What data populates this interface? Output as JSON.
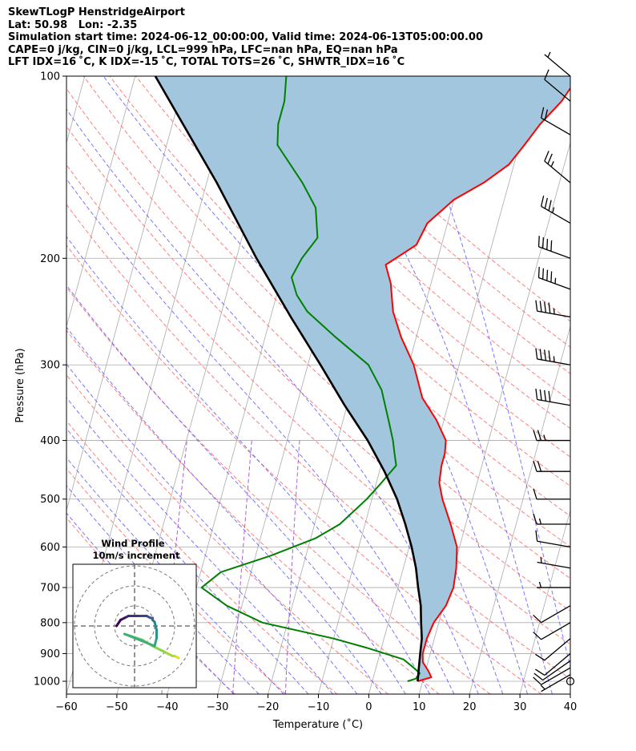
{
  "title": {
    "line1": "SkewTLogP HenstridgeAirport",
    "line2": "Lat: 50.98   Lon: -2.35",
    "line3": "Simulation start time: 2024-06-12_00:00:00, Valid time: 2024-06-13T05:00:00.00",
    "line4": "CAPE=0 j/kg, CIN=0 j/kg, LCL=999 hPa, LFC=nan hPa, EQ=nan hPa",
    "line5": "LFT IDX=16 ˚C, K IDX=-15 ˚C, TOTAL TOTS=26 ˚C, SHWTR_IDX=16 ˚C"
  },
  "chart_data": {
    "type": "line",
    "subtype": "skew-T log-P diagram",
    "xlabel": "Temperature (˚C)",
    "ylabel": "Pressure (hPa)",
    "xlim": [
      -60,
      40
    ],
    "ylim": [
      1050,
      100
    ],
    "y_scale": "log",
    "grid": true,
    "x_ticks": [
      -60,
      -50,
      -40,
      -30,
      -20,
      -10,
      0,
      10,
      20,
      30,
      40
    ],
    "x_tick_labels": [
      "−60",
      "−50",
      "−40",
      "−30",
      "−20",
      "−10",
      "0",
      "10",
      "20",
      "30",
      "40"
    ],
    "y_ticks": [
      1000,
      900,
      800,
      700,
      600,
      500,
      400,
      300,
      200,
      100
    ],
    "y_tick_labels": [
      "1000",
      "900",
      "800",
      "700",
      "600",
      "500",
      "400",
      "300",
      "200",
      "100"
    ],
    "colors": {
      "temperature": "#ff0000",
      "dewpoint": "#008000",
      "parcel": "#000000",
      "shade": "#a3c6df",
      "dry_adiabat": "#ff6666",
      "moist_adiabat": "#5555ff",
      "mixing_ratio": "#9944cc",
      "isotherm": "#aaaaaa"
    },
    "series": [
      {
        "key": "temperature",
        "pressure": [
          1000,
          985,
          960,
          930,
          900,
          850,
          800,
          750,
          700,
          650,
          600,
          550,
          500,
          470,
          440,
          420,
          400,
          370,
          340,
          300,
          270,
          245,
          220,
          205,
          190,
          175,
          160,
          150,
          140,
          130,
          120,
          110,
          100
        ],
        "temperature": [
          9,
          11.5,
          10.5,
          9,
          8.5,
          8.5,
          9,
          10.5,
          11,
          10.5,
          9.5,
          7,
          4,
          2.5,
          2,
          2,
          1.5,
          -1.5,
          -5.5,
          -9,
          -13,
          -16,
          -18,
          -20,
          -15,
          -14,
          -10,
          -5,
          -1,
          1,
          3,
          6,
          8
        ]
      },
      {
        "key": "dewpoint",
        "pressure": [
          1000,
          990,
          970,
          950,
          920,
          880,
          850,
          800,
          750,
          700,
          660,
          620,
          580,
          550,
          500,
          470,
          440,
          420,
          400,
          370,
          330,
          300,
          270,
          245,
          230,
          215,
          200,
          185,
          165,
          150,
          130,
          120,
          110,
          100
        ],
        "temperature": [
          7,
          8.5,
          9,
          7.5,
          5,
          -3,
          -10,
          -25,
          -33,
          -39,
          -36,
          -27,
          -19,
          -15,
          -11,
          -9,
          -7,
          -8,
          -9,
          -11,
          -14,
          -18,
          -26,
          -33,
          -36,
          -38,
          -37,
          -35,
          -37,
          -41,
          -48,
          -49,
          -49,
          -50
        ]
      },
      {
        "key": "parcel",
        "pressure": [
          1000,
          950,
          900,
          850,
          800,
          750,
          700,
          650,
          600,
          550,
          500,
          450,
          400,
          350,
          300,
          250,
          200,
          150,
          100
        ],
        "temperature": [
          9,
          8.5,
          8,
          7.5,
          6.5,
          5.5,
          4,
          2.5,
          0.5,
          -2,
          -5,
          -9,
          -14,
          -20.5,
          -27.5,
          -36,
          -46,
          -58,
          -76
        ]
      }
    ],
    "wind_barbs": {
      "units": "knots",
      "pressure": [
        1000,
        975,
        950,
        925,
        900,
        850,
        800,
        750,
        700,
        650,
        600,
        550,
        500,
        450,
        400,
        350,
        300,
        250,
        225,
        200,
        175,
        150,
        125,
        110,
        100
      ],
      "speed": [
        2,
        5,
        10,
        10,
        10,
        10,
        10,
        10,
        5,
        5,
        10,
        15,
        10,
        20,
        25,
        40,
        45,
        45,
        45,
        40,
        35,
        25,
        20,
        10,
        5
      ],
      "direction": [
        300,
        240,
        240,
        235,
        230,
        230,
        240,
        240,
        270,
        280,
        280,
        270,
        270,
        270,
        270,
        280,
        280,
        280,
        290,
        290,
        300,
        310,
        300,
        310,
        310
      ]
    },
    "wind_profile": {
      "title": "Wind Profile",
      "subtitle": "10m/s increment",
      "ring_count": 3,
      "u": [
        11,
        10,
        9.5,
        7.5,
        4.5,
        2,
        -1,
        -2.5,
        5,
        5.5,
        5.5,
        5,
        4.5,
        4.5,
        4,
        3,
        1,
        -1.5,
        -2.5,
        -3.5,
        -4.5
      ],
      "v": [
        -8,
        -7.5,
        -7.5,
        -6.5,
        -5,
        -3.5,
        -2.5,
        -2,
        -5,
        -3,
        -1,
        1,
        1.5,
        2,
        2,
        2.5,
        2.5,
        2.5,
        2,
        1.5,
        0
      ]
    }
  }
}
